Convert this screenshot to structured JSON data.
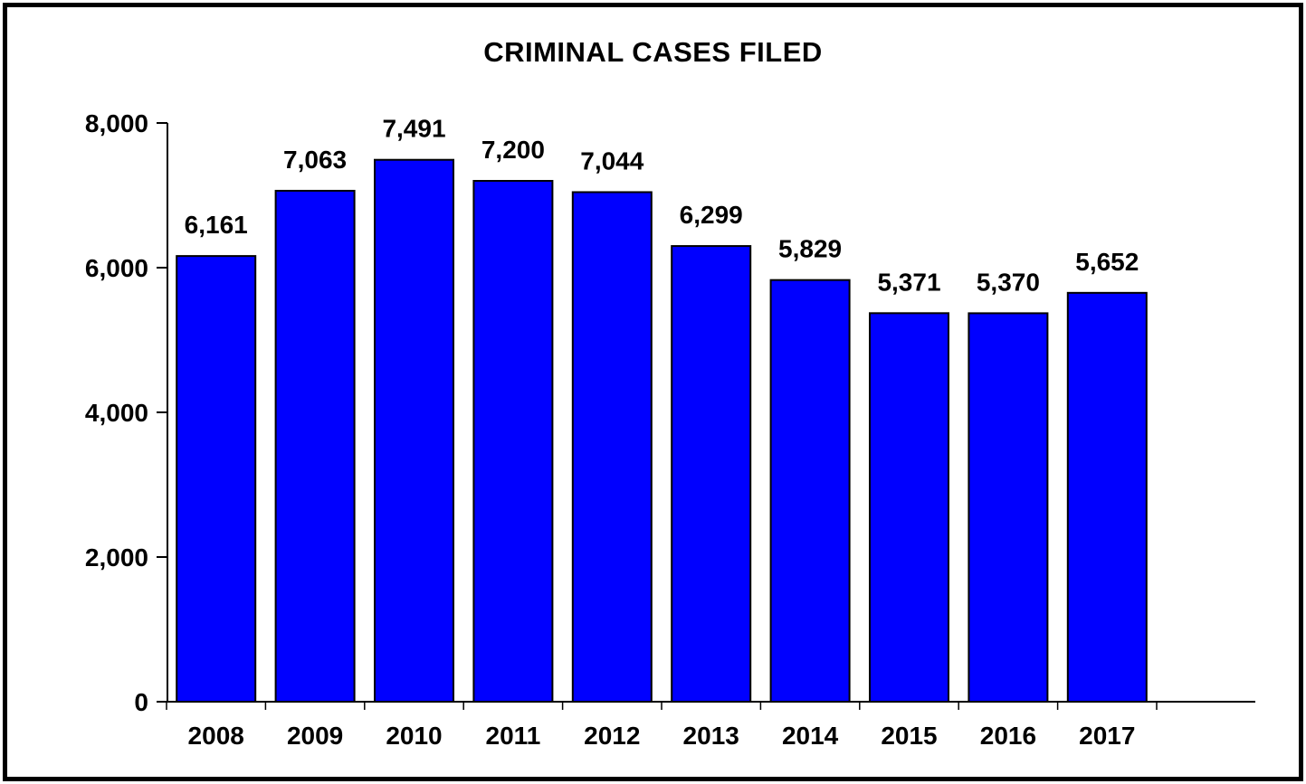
{
  "chart_data": {
    "type": "bar",
    "title": "CRIMINAL CASES FILED",
    "xlabel": "",
    "ylabel": "",
    "categories": [
      "2008",
      "2009",
      "2010",
      "2011",
      "2012",
      "2013",
      "2014",
      "2015",
      "2016",
      "2017"
    ],
    "values": [
      6161,
      7063,
      7491,
      7200,
      7044,
      6299,
      5829,
      5371,
      5370,
      5652
    ],
    "value_labels": [
      "6,161",
      "7,063",
      "7,491",
      "7,200",
      "7,044",
      "6,299",
      "5,829",
      "5,371",
      "5,370",
      "5,652"
    ],
    "ylim": [
      0,
      8000
    ],
    "yticks": [
      0,
      2000,
      4000,
      6000,
      8000
    ],
    "ytick_labels": [
      "0",
      "2,000",
      "4,000",
      "6,000",
      "8,000"
    ],
    "grid": false,
    "legend": "none",
    "colors": {
      "bar_fill": "#0000ff",
      "bar_stroke": "#000000",
      "axis": "#000000",
      "text": "#000000"
    }
  }
}
